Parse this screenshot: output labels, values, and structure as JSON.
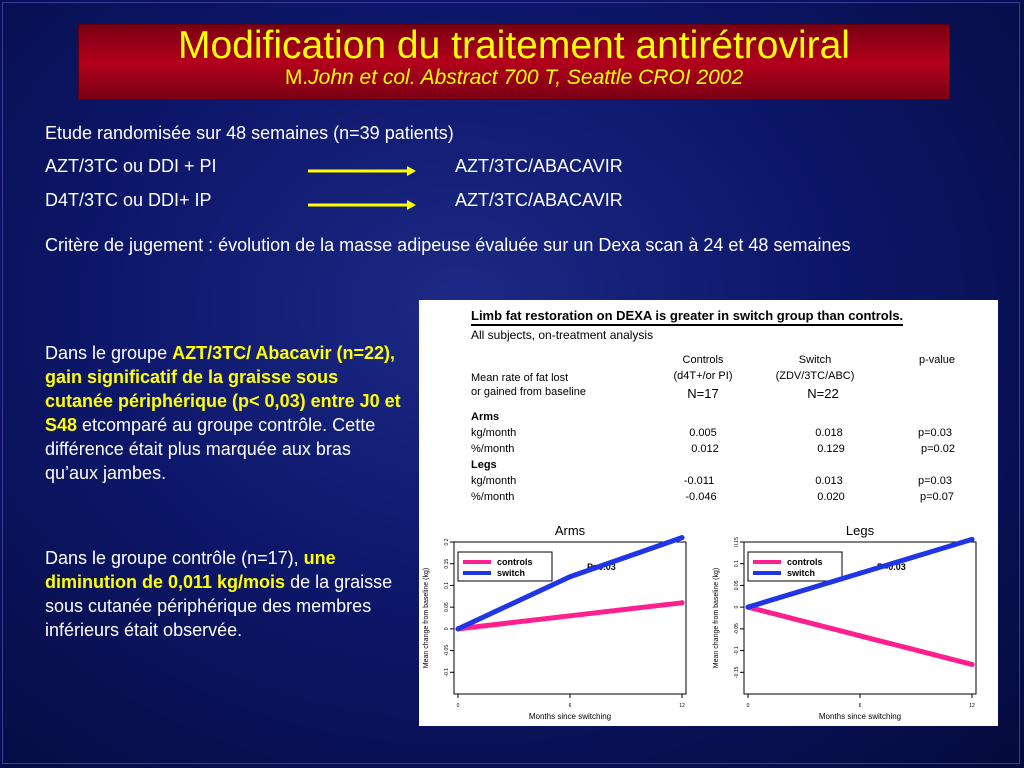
{
  "slide": {
    "title": "Modification du traitement antirétroviral",
    "subtitle_prefix": "M.",
    "subtitle_italic": "John et col. Abstract 700 T, Seattle CROI 2002"
  },
  "intro": {
    "line1": "Etude randomisée sur 48 semaines (n=39  patients)",
    "row1_left": "AZT/3TC ou DDI + PI",
    "row1_right": "AZT/3TC/ABACAVIR",
    "row2_left": "D4T/3TC ou DDI+ IP",
    "row2_right": "AZT/3TC/ABACAVIR",
    "criterion": "Critère de jugement : évolution de la masse adipeuse évaluée sur un Dexa scan à 24 et 48 semaines"
  },
  "left_text": {
    "p1_a": "Dans le groupe ",
    "p1_hl": "AZT/3TC/ Abacavir (n=22), gain significatif de la graisse sous cutanée périphérique (p< 0,03) entre J0 et S48",
    "p1_b": " etcomparé au groupe contrôle. Cette différence était plus marquée aux bras qu’aux jambes.",
    "p2_a": "Dans le groupe contrôle (n=17), ",
    "p2_hl": "une diminution de 0,011 kg/mois",
    "p2_b": " de la graisse sous cutanée périphérique des membres inférieurs était observée."
  },
  "figure": {
    "title": "Limb fat restoration on DEXA is greater in switch group than controls.",
    "subtitle": "All subjects, on-treatment analysis",
    "row_label_1": "Mean rate of fat lost",
    "row_label_2": "or gained from baseline",
    "col_controls": "Controls",
    "col_controls_sub": "(d4T+/or PI)",
    "col_switch": "Switch",
    "col_switch_sub": "(ZDV/3TC/ABC)",
    "col_p": "p-value",
    "n_controls": "N=17",
    "n_switch": "N=22",
    "section_arms": "Arms",
    "section_legs": "Legs",
    "rows": [
      {
        "label": "kg/month",
        "controls": "0.005",
        "switch": "0.018",
        "p": "p=0.03"
      },
      {
        "label": "%/month",
        "controls": "0.012",
        "switch": "0.129",
        "p": "p=0.02"
      },
      {
        "label": "kg/month",
        "controls": "-0.011",
        "switch": "0.013",
        "p": "p=0.03"
      },
      {
        "label": "%/month",
        "controls": "-0.046",
        "switch": "0.020",
        "p": "p=0.07"
      }
    ]
  },
  "chart_data": [
    {
      "type": "line",
      "title": "Arms",
      "xlabel": "Months since switching",
      "ylabel": "Mean change from baseline (kg)",
      "annotation": "P=0.03",
      "x": [
        0,
        6,
        12
      ],
      "xticks": [
        0,
        6,
        12
      ],
      "yticks": [
        -0.1,
        -0.05,
        0,
        0.05,
        0.1,
        0.15,
        0.2
      ],
      "ylim": [
        -0.15,
        0.2
      ],
      "legend_position": "top-left",
      "series": [
        {
          "name": "controls",
          "color": "#ff1f8e",
          "values": [
            0.0,
            0.03,
            0.06
          ]
        },
        {
          "name": "switch",
          "color": "#1f35e8",
          "values": [
            0.0,
            0.12,
            0.21
          ]
        }
      ]
    },
    {
      "type": "line",
      "title": "Legs",
      "xlabel": "Months since switching",
      "ylabel": "Mean change from baseline (kg)",
      "annotation": "P=0.03",
      "x": [
        0,
        6,
        12
      ],
      "xticks": [
        0,
        6,
        12
      ],
      "yticks": [
        -0.15,
        -0.1,
        -0.05,
        0,
        0.05,
        0.1,
        0.15
      ],
      "ylim": [
        -0.2,
        0.15
      ],
      "legend_position": "top-left",
      "series": [
        {
          "name": "controls",
          "color": "#ff1f8e",
          "values": [
            0.0,
            -0.066,
            -0.132
          ]
        },
        {
          "name": "switch",
          "color": "#1f35e8",
          "values": [
            0.0,
            0.078,
            0.156
          ]
        }
      ]
    }
  ],
  "colors": {
    "accent_yellow": "#ffff00",
    "title_red": "#b3001c",
    "background_blue": "#0d176a"
  }
}
